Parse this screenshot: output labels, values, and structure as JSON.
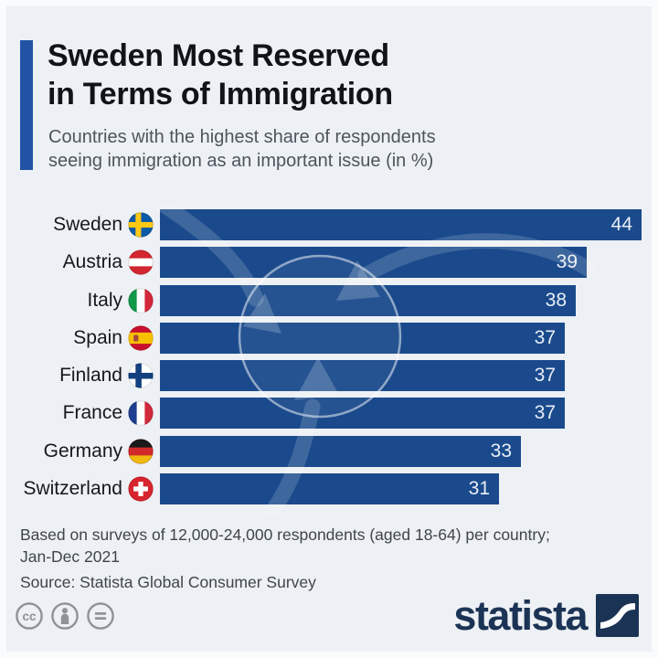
{
  "header": {
    "title_line1": "Sweden Most Reserved",
    "title_line2": "in Terms of Immigration",
    "subtitle_line1": "Countries with the highest share of respondents",
    "subtitle_line2": "seeing immigration as an important issue (in %)"
  },
  "chart_data": {
    "type": "bar",
    "orientation": "horizontal",
    "title": "Sweden Most Reserved in Terms of Immigration",
    "subtitle": "Countries with the highest share of respondents seeing immigration as an important issue (in %)",
    "categories": [
      "Sweden",
      "Austria",
      "Italy",
      "Spain",
      "Finland",
      "France",
      "Germany",
      "Switzerland"
    ],
    "values": [
      44,
      39,
      38,
      37,
      37,
      37,
      33,
      31
    ],
    "flag_icons": [
      "flag-sweden-icon",
      "flag-austria-icon",
      "flag-italy-icon",
      "flag-spain-icon",
      "flag-finland-icon",
      "flag-france-icon",
      "flag-germany-icon",
      "flag-switzerland-icon"
    ],
    "xlim": [
      0,
      44
    ],
    "value_labels_inside_bars": true,
    "grid": false,
    "legend": false
  },
  "footer": {
    "note_line1": "Based on surveys of 12,000-24,000 respondents (aged 18-64) per country;",
    "note_line2": "Jan-Dec 2021",
    "source": "Source: Statista Global Consumer Survey"
  },
  "branding": {
    "logo_text": "statista",
    "license_icons": [
      "cc-license-icon",
      "attribution-icon",
      "no-derivatives-icon"
    ]
  },
  "colors": {
    "background": "#edf0f4",
    "bar": "#1a4a8c",
    "accent_bar": "#2053a4",
    "title": "#101418",
    "subtitle": "#4e555d",
    "footer_text": "#3f454b",
    "value_text": "#e9eef7",
    "logo_navy": "#1b3354",
    "license_gray": "#8f9296"
  }
}
